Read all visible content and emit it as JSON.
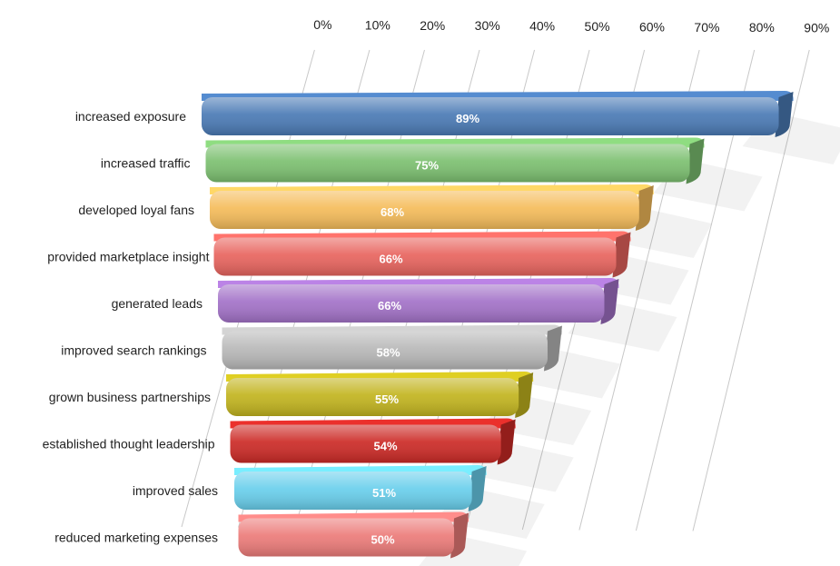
{
  "chart_data": {
    "type": "bar",
    "orientation": "horizontal",
    "categories": [
      "increased exposure",
      "increased traffic",
      "developed loyal fans",
      "provided marketplace insight",
      "generated leads",
      "improved search rankings",
      "grown business partnerships",
      "established thought leadership",
      "improved sales",
      "reduced marketing expenses"
    ],
    "values": [
      89,
      75,
      68,
      66,
      66,
      58,
      55,
      54,
      51,
      50
    ],
    "value_labels": [
      "89%",
      "75%",
      "68%",
      "66%",
      "66%",
      "58%",
      "55%",
      "54%",
      "51%",
      "50%"
    ],
    "x_ticks": [
      "0%",
      "10%",
      "20%",
      "30%",
      "40%",
      "50%",
      "60%",
      "70%",
      "80%",
      "90%"
    ],
    "xlim": [
      0,
      90
    ],
    "x_axis_position": "top",
    "grid": true,
    "legend": "none",
    "colors": [
      "#4a7ab5",
      "#7cc070",
      "#f5bc5a",
      "#e8645e",
      "#a372c8",
      "#b8b8b8",
      "#c2b41e",
      "#cc2a26",
      "#69cfec",
      "#ec7b79"
    ],
    "title": "",
    "xlabel": "",
    "ylabel": ""
  }
}
